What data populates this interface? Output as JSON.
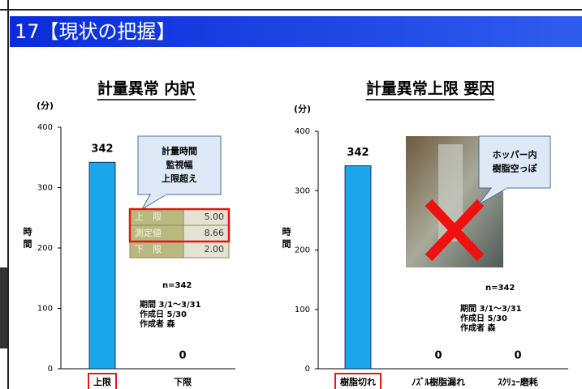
{
  "header": {
    "title": "17【現状の把握】"
  },
  "chart_data": [
    {
      "type": "bar",
      "title": "計量異常 内訳",
      "y_unit": "(分)",
      "y_label": "時間",
      "categories": [
        "上限",
        "下限"
      ],
      "values": [
        342,
        0
      ],
      "color": "#1aa6e8",
      "ylim": [
        0,
        400
      ],
      "yticks": [
        0,
        100,
        200,
        300,
        400
      ],
      "highlight": [
        0
      ],
      "callout": [
        "計量時間",
        "監視幅",
        "上限超え"
      ],
      "table": [
        [
          "上　限",
          "5.00"
        ],
        [
          "測定値",
          "8.66"
        ],
        [
          "下　限",
          "2.00"
        ]
      ],
      "notes": [
        "n=342",
        "期間 3/1～3/31",
        "作成日 5/30",
        "作成者 森"
      ]
    },
    {
      "type": "bar",
      "title": "計量異常上限 要因",
      "y_unit": "(分)",
      "y_label": "時間",
      "categories": [
        "樹脂切れ",
        "ﾉｽﾞﾙ樹脂漏れ",
        "ｽｸﾘｭｰ磨耗"
      ],
      "values": [
        342,
        0,
        0
      ],
      "color": "#1aa6e8",
      "ylim": [
        0,
        400
      ],
      "yticks": [
        0,
        100,
        200,
        300,
        400
      ],
      "highlight": [
        0
      ],
      "callout": [
        "ホッパー内",
        "樹脂空っぽ"
      ],
      "notes": [
        "n=342",
        "期間 3/1～3/31",
        "作成日 5/30",
        "作成者 森"
      ]
    }
  ]
}
